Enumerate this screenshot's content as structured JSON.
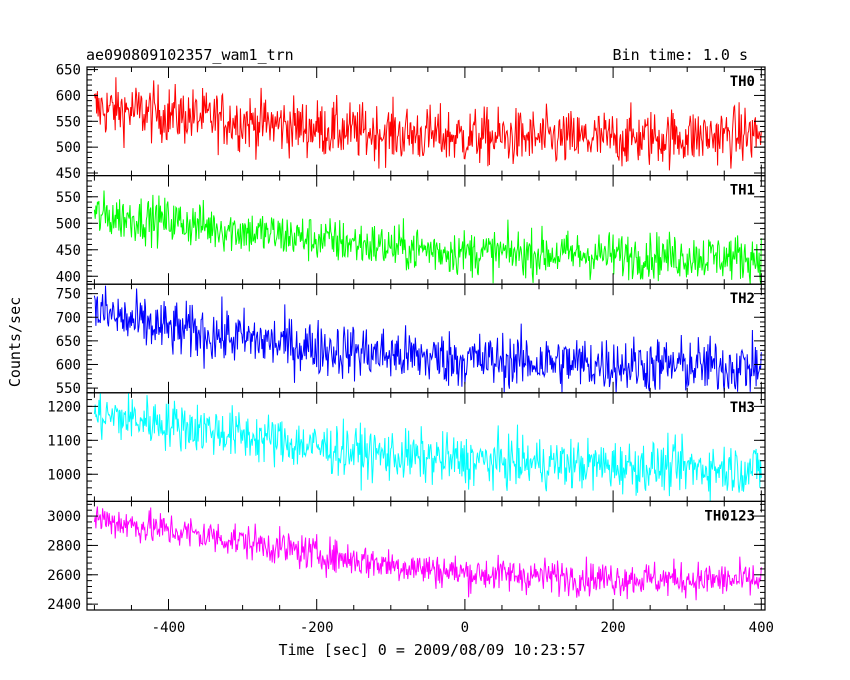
{
  "header": {
    "title": "ae090809102357_wam1_trn",
    "bin_time": "Bin time: 1.0 s"
  },
  "chart_data": {
    "type": "line",
    "xlabel": "Time [sec] 0 = 2009/08/09 10:23:57",
    "ylabel": "Counts/sec",
    "xlim": [
      -510,
      405
    ],
    "xticks": [
      -400,
      -200,
      0,
      200,
      400
    ],
    "bin_time_s": 1.0,
    "panels": [
      {
        "name": "TH0",
        "color": "#ff0000",
        "ylim": [
          445,
          655
        ],
        "yticks": [
          450,
          500,
          550,
          600,
          650
        ],
        "trend": [
          [
            -500,
            575
          ],
          [
            -450,
            570
          ],
          [
            -300,
            550
          ],
          [
            -150,
            530
          ],
          [
            0,
            520
          ],
          [
            150,
            515
          ],
          [
            300,
            520
          ],
          [
            400,
            525
          ]
        ],
        "noise_sd": 28
      },
      {
        "name": "TH1",
        "color": "#00ff00",
        "ylim": [
          385,
          590
        ],
        "yticks": [
          400,
          450,
          500,
          550
        ],
        "trend": [
          [
            -500,
            515
          ],
          [
            -400,
            505
          ],
          [
            -300,
            485
          ],
          [
            -200,
            470
          ],
          [
            -100,
            455
          ],
          [
            0,
            445
          ],
          [
            200,
            440
          ],
          [
            400,
            435
          ]
        ],
        "noise_sd": 22
      },
      {
        "name": "TH2",
        "color": "#0000ff",
        "ylim": [
          540,
          770
        ],
        "yticks": [
          550,
          600,
          650,
          700,
          750
        ],
        "trend": [
          [
            -500,
            715
          ],
          [
            -450,
            690
          ],
          [
            -400,
            675
          ],
          [
            -300,
            655
          ],
          [
            -200,
            635
          ],
          [
            -100,
            620
          ],
          [
            0,
            610
          ],
          [
            200,
            600
          ],
          [
            400,
            595
          ]
        ],
        "noise_sd": 30
      },
      {
        "name": "TH3",
        "color": "#00ffff",
        "ylim": [
          920,
          1240
        ],
        "yticks": [
          1000,
          1100,
          1200
        ],
        "trend": [
          [
            -500,
            1175
          ],
          [
            -400,
            1150
          ],
          [
            -300,
            1115
          ],
          [
            -200,
            1080
          ],
          [
            -100,
            1055
          ],
          [
            0,
            1040
          ],
          [
            200,
            1025
          ],
          [
            400,
            1015
          ]
        ],
        "noise_sd": 38
      },
      {
        "name": "TH0123",
        "color": "#ff00ff",
        "ylim": [
          2360,
          3100
        ],
        "yticks": [
          2400,
          2600,
          2800,
          3000
        ],
        "trend": [
          [
            -500,
            2990
          ],
          [
            -450,
            2940
          ],
          [
            -300,
            2830
          ],
          [
            -200,
            2740
          ],
          [
            -100,
            2670
          ],
          [
            0,
            2610
          ],
          [
            200,
            2575
          ],
          [
            400,
            2560
          ]
        ],
        "noise_sd": 60
      }
    ]
  }
}
